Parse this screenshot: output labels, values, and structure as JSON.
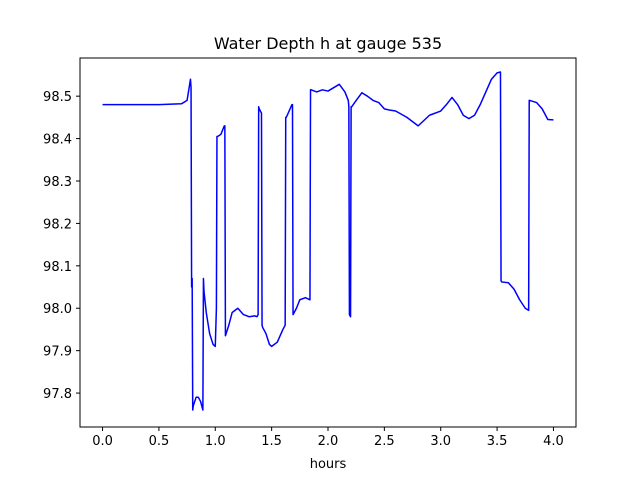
{
  "chart_data": {
    "type": "line",
    "title": "Water Depth h at gauge 535",
    "xlabel": "hours",
    "ylabel": "",
    "xlim": [
      -0.2,
      4.2
    ],
    "ylim": [
      97.72,
      98.59
    ],
    "xticks": [
      0.0,
      0.5,
      1.0,
      1.5,
      2.0,
      2.5,
      3.0,
      3.5,
      4.0
    ],
    "xtick_labels": [
      "0.0",
      "0.5",
      "1.0",
      "1.5",
      "2.0",
      "2.5",
      "3.0",
      "3.5",
      "4.0"
    ],
    "yticks": [
      97.8,
      97.9,
      98.0,
      98.1,
      98.2,
      98.3,
      98.4,
      98.5
    ],
    "ytick_labels": [
      "97.8",
      "97.9",
      "98.0",
      "98.1",
      "98.2",
      "98.3",
      "98.4",
      "98.5"
    ],
    "grid": false,
    "series": [
      {
        "color": "#0000ff",
        "x": [
          0.0,
          0.5,
          0.7,
          0.75,
          0.78,
          0.785,
          0.79,
          0.795,
          0.8,
          0.805,
          0.83,
          0.85,
          0.87,
          0.89,
          0.895,
          0.9,
          0.92,
          0.95,
          0.98,
          1.0,
          1.01,
          1.015,
          1.02,
          1.05,
          1.08,
          1.085,
          1.09,
          1.12,
          1.15,
          1.2,
          1.25,
          1.3,
          1.35,
          1.37,
          1.38,
          1.385,
          1.39,
          1.41,
          1.415,
          1.42,
          1.45,
          1.48,
          1.5,
          1.55,
          1.6,
          1.62,
          1.625,
          1.63,
          1.68,
          1.685,
          1.69,
          1.72,
          1.75,
          1.8,
          1.84,
          1.845,
          1.85,
          1.9,
          1.95,
          2.0,
          2.05,
          2.1,
          2.15,
          2.18,
          2.185,
          2.19,
          2.2,
          2.205,
          2.21,
          2.25,
          2.3,
          2.35,
          2.4,
          2.45,
          2.5,
          2.55,
          2.6,
          2.7,
          2.8,
          2.9,
          3.0,
          3.05,
          3.1,
          3.15,
          3.2,
          3.25,
          3.3,
          3.35,
          3.4,
          3.45,
          3.5,
          3.53,
          3.535,
          3.54,
          3.6,
          3.65,
          3.7,
          3.75,
          3.78,
          3.785,
          3.79,
          3.85,
          3.9,
          3.95,
          4.0
        ],
        "y": [
          98.48,
          98.48,
          98.482,
          98.49,
          98.54,
          98.52,
          98.05,
          98.07,
          97.76,
          97.77,
          97.79,
          97.79,
          97.78,
          97.76,
          98.07,
          98.04,
          97.99,
          97.94,
          97.915,
          97.91,
          98.0,
          98.405,
          98.405,
          98.41,
          98.43,
          98.43,
          97.935,
          97.96,
          97.99,
          98.0,
          97.985,
          97.98,
          97.982,
          97.98,
          97.985,
          98.475,
          98.47,
          98.46,
          97.96,
          97.955,
          97.94,
          97.915,
          97.91,
          97.92,
          97.95,
          97.96,
          98.45,
          98.45,
          98.48,
          98.48,
          97.985,
          98.0,
          98.02,
          98.025,
          98.02,
          98.515,
          98.515,
          98.51,
          98.515,
          98.512,
          98.52,
          98.528,
          98.51,
          98.49,
          98.475,
          97.985,
          97.98,
          98.475,
          98.475,
          98.49,
          98.508,
          98.5,
          98.49,
          98.485,
          98.47,
          98.467,
          98.465,
          98.45,
          98.43,
          98.455,
          98.465,
          98.48,
          98.497,
          98.48,
          98.455,
          98.447,
          98.455,
          98.48,
          98.51,
          98.54,
          98.555,
          98.557,
          98.065,
          98.062,
          98.06,
          98.045,
          98.02,
          98.0,
          97.995,
          98.49,
          98.49,
          98.485,
          98.47,
          98.445,
          98.444
        ]
      }
    ]
  }
}
